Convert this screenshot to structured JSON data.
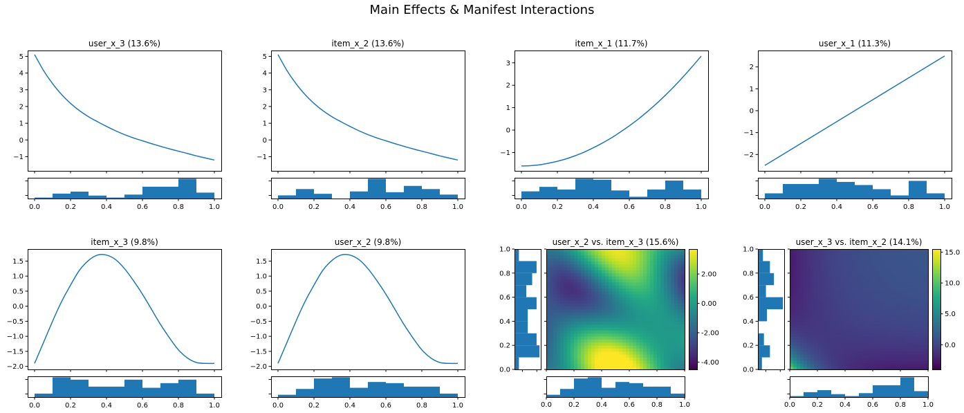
{
  "figure": {
    "title": "Main Effects & Manifest Interactions",
    "colors": {
      "line": "#1f77b4",
      "bar": "#1f77b4",
      "axis": "#000000"
    }
  },
  "chart_data": [
    {
      "type": "line",
      "title": "user_x_3 (13.6%)",
      "xlim": [
        0,
        1
      ],
      "ylim": [
        -1.85,
        5.35
      ],
      "yticks": [
        -1,
        0,
        1,
        2,
        3,
        4,
        5
      ],
      "ytick_labels": [
        "−1",
        "0",
        "1",
        "2",
        "3",
        "4",
        "5"
      ],
      "x": [
        0,
        0.05,
        0.1,
        0.15,
        0.2,
        0.25,
        0.3,
        0.35,
        0.4,
        0.45,
        0.5,
        0.55,
        0.6,
        0.65,
        0.7,
        0.75,
        0.8,
        0.85,
        0.9,
        0.95,
        1
      ],
      "y": [
        5.1,
        4.15,
        3.37,
        2.72,
        2.19,
        1.75,
        1.39,
        1.09,
        0.81,
        0.55,
        0.32,
        0.12,
        -0.05,
        -0.22,
        -0.38,
        -0.53,
        -0.67,
        -0.81,
        -0.95,
        -1.08,
        -1.2
      ],
      "histogram": {
        "bins": [
          0,
          0.1,
          0.2,
          0.3,
          0.4,
          0.5,
          0.6,
          0.7,
          0.8,
          0.9,
          1
        ],
        "counts": [
          1,
          5,
          7,
          3,
          1,
          4,
          12,
          12,
          20,
          6
        ],
        "xticks": [
          0,
          0.2,
          0.4,
          0.6,
          0.8,
          1.0
        ],
        "xtick_labels": [
          "0.0",
          "0.2",
          "0.4",
          "0.6",
          "0.8",
          "1.0"
        ]
      }
    },
    {
      "type": "line",
      "title": "item_x_2 (13.6%)",
      "xlim": [
        0,
        1
      ],
      "ylim": [
        -1.85,
        5.35
      ],
      "yticks": [
        -1,
        0,
        1,
        2,
        3,
        4,
        5
      ],
      "ytick_labels": [
        "−1",
        "0",
        "1",
        "2",
        "3",
        "4",
        "5"
      ],
      "x": [
        0,
        0.05,
        0.1,
        0.15,
        0.2,
        0.25,
        0.3,
        0.35,
        0.4,
        0.45,
        0.5,
        0.55,
        0.6,
        0.65,
        0.7,
        0.75,
        0.8,
        0.85,
        0.9,
        0.95,
        1
      ],
      "y": [
        5.1,
        4.15,
        3.37,
        2.72,
        2.19,
        1.75,
        1.39,
        1.09,
        0.81,
        0.55,
        0.32,
        0.12,
        -0.05,
        -0.22,
        -0.38,
        -0.53,
        -0.67,
        -0.81,
        -0.95,
        -1.08,
        -1.2
      ],
      "histogram": {
        "bins": [
          0,
          0.1,
          0.2,
          0.3,
          0.4,
          0.5,
          0.6,
          0.7,
          0.8,
          0.9,
          1
        ],
        "counts": [
          4,
          12,
          6,
          0,
          9,
          25,
          8,
          16,
          12,
          5
        ],
        "xticks": [
          0,
          0.2,
          0.4,
          0.6,
          0.8,
          1.0
        ],
        "xtick_labels": [
          "0.0",
          "0.2",
          "0.4",
          "0.6",
          "0.8",
          "1.0"
        ]
      }
    },
    {
      "type": "line",
      "title": "item_x_1 (11.7%)",
      "xlim": [
        0,
        1
      ],
      "ylim": [
        -1.82,
        3.55
      ],
      "yticks": [
        -1,
        0,
        1,
        2,
        3
      ],
      "ytick_labels": [
        "−1",
        "0",
        "1",
        "2",
        "3"
      ],
      "x": [
        0,
        0.05,
        0.1,
        0.15,
        0.2,
        0.25,
        0.3,
        0.35,
        0.4,
        0.45,
        0.5,
        0.55,
        0.6,
        0.65,
        0.7,
        0.75,
        0.8,
        0.85,
        0.9,
        0.95,
        1
      ],
      "y": [
        -1.6,
        -1.59,
        -1.55,
        -1.48,
        -1.39,
        -1.28,
        -1.14,
        -0.98,
        -0.79,
        -0.58,
        -0.35,
        -0.09,
        0.19,
        0.49,
        0.82,
        1.17,
        1.55,
        1.95,
        2.38,
        2.83,
        3.3
      ],
      "histogram": {
        "bins": [
          0,
          0.1,
          0.2,
          0.3,
          0.4,
          0.5,
          0.6,
          0.7,
          0.8,
          0.9,
          1
        ],
        "counts": [
          8,
          13,
          10,
          22,
          21,
          9,
          2,
          10,
          20,
          10
        ],
        "xticks": [
          0,
          0.2,
          0.4,
          0.6,
          0.8,
          1.0
        ],
        "xtick_labels": [
          "0.0",
          "0.2",
          "0.4",
          "0.6",
          "0.8",
          "1.0"
        ]
      }
    },
    {
      "type": "line",
      "title": "user_x_1 (11.3%)",
      "xlim": [
        0,
        1
      ],
      "ylim": [
        -2.75,
        2.75
      ],
      "yticks": [
        -2,
        -1,
        0,
        1,
        2
      ],
      "ytick_labels": [
        "−2",
        "−1",
        "0",
        "1",
        "2"
      ],
      "x": [
        0,
        1
      ],
      "y": [
        -2.5,
        2.5
      ],
      "histogram": {
        "bins": [
          0,
          0.1,
          0.2,
          0.3,
          0.4,
          0.5,
          0.6,
          0.7,
          0.8,
          0.9,
          1
        ],
        "counts": [
          5,
          14,
          14,
          19,
          16,
          13,
          9,
          3,
          17,
          5
        ],
        "xticks": [
          0,
          0.2,
          0.4,
          0.6,
          0.8,
          1.0
        ],
        "xtick_labels": [
          "0.0",
          "0.2",
          "0.4",
          "0.6",
          "0.8",
          "1.0"
        ]
      }
    },
    {
      "type": "line",
      "title": "item_x_3 (9.8%)",
      "xlim": [
        0,
        1
      ],
      "ylim": [
        -2.1,
        1.9
      ],
      "yticks": [
        -2.0,
        -1.5,
        -1.0,
        -0.5,
        0.0,
        0.5,
        1.0,
        1.5
      ],
      "ytick_labels": [
        "−2.0",
        "−1.5",
        "−1.0",
        "−0.5",
        "0.0",
        "0.5",
        "1.0",
        "1.5"
      ],
      "x": [
        0,
        0.05,
        0.1,
        0.15,
        0.2,
        0.25,
        0.3,
        0.35,
        0.4,
        0.45,
        0.5,
        0.55,
        0.6,
        0.65,
        0.7,
        0.75,
        0.8,
        0.85,
        0.9,
        0.95,
        1
      ],
      "y": [
        -1.9,
        -1.2,
        -0.5,
        0.15,
        0.7,
        1.2,
        1.52,
        1.7,
        1.7,
        1.55,
        1.25,
        0.85,
        0.4,
        -0.1,
        -0.6,
        -1.05,
        -1.45,
        -1.72,
        -1.87,
        -1.9,
        -1.9
      ],
      "histogram": {
        "bins": [
          0,
          0.1,
          0.2,
          0.3,
          0.4,
          0.5,
          0.6,
          0.7,
          0.8,
          0.9,
          1
        ],
        "counts": [
          3,
          17,
          15,
          9,
          9,
          15,
          8,
          12,
          15,
          3
        ],
        "xticks": [
          0,
          0.2,
          0.4,
          0.6,
          0.8,
          1.0
        ],
        "xtick_labels": [
          "0.0",
          "0.2",
          "0.4",
          "0.6",
          "0.8",
          "1.0"
        ]
      }
    },
    {
      "type": "line",
      "title": "user_x_2 (9.8%)",
      "xlim": [
        0,
        1
      ],
      "ylim": [
        -2.1,
        1.9
      ],
      "yticks": [
        -2.0,
        -1.5,
        -1.0,
        -0.5,
        0.0,
        0.5,
        1.0,
        1.5
      ],
      "ytick_labels": [
        "−2.0",
        "−1.5",
        "−1.0",
        "−0.5",
        "0.0",
        "0.5",
        "1.0",
        "1.5"
      ],
      "x": [
        0,
        0.05,
        0.1,
        0.15,
        0.2,
        0.25,
        0.3,
        0.35,
        0.4,
        0.45,
        0.5,
        0.55,
        0.6,
        0.65,
        0.7,
        0.75,
        0.8,
        0.85,
        0.9,
        0.95,
        1
      ],
      "y": [
        -1.9,
        -1.2,
        -0.5,
        0.15,
        0.7,
        1.2,
        1.52,
        1.7,
        1.7,
        1.55,
        1.25,
        0.85,
        0.4,
        -0.1,
        -0.6,
        -1.05,
        -1.45,
        -1.72,
        -1.87,
        -1.9,
        -1.9
      ],
      "histogram": {
        "bins": [
          0,
          0.1,
          0.2,
          0.3,
          0.4,
          0.5,
          0.6,
          0.7,
          0.8,
          0.9,
          1
        ],
        "counts": [
          2,
          7,
          16,
          17,
          8,
          13,
          12,
          9,
          9,
          3
        ],
        "xticks": [
          0,
          0.2,
          0.4,
          0.6,
          0.8,
          1.0
        ],
        "xtick_labels": [
          "0.0",
          "0.2",
          "0.4",
          "0.6",
          "0.8",
          "1.0"
        ]
      }
    },
    {
      "type": "heatmap",
      "title": "user_x_2 vs. item_x_3 (15.6%)",
      "xlim": [
        0,
        1
      ],
      "ylim": [
        0,
        1
      ],
      "colormap": "viridis",
      "zlim": [
        -4.5,
        3.7
      ],
      "colorbar_ticks": [
        2.0,
        0.0,
        -2.0,
        -4.0
      ],
      "colorbar_tick_labels": [
        "2.00",
        "0.00",
        "-2.00",
        "-4.00"
      ],
      "yticks": [
        0,
        0.2,
        0.4,
        0.6,
        0.8,
        1.0
      ],
      "ytick_labels": [
        "0.0",
        "0.2",
        "0.4",
        "0.6",
        "0.8",
        "1.0"
      ],
      "x_histogram": {
        "bins": [
          0,
          0.1,
          0.2,
          0.3,
          0.4,
          0.5,
          0.6,
          0.7,
          0.8,
          0.9,
          1
        ],
        "counts": [
          2,
          7,
          16,
          17,
          8,
          13,
          12,
          9,
          9,
          3
        ],
        "xticks": [
          0,
          0.2,
          0.4,
          0.6,
          0.8,
          1.0
        ],
        "xtick_labels": [
          "0.0",
          "0.2",
          "0.4",
          "0.6",
          "0.8",
          "1.0"
        ]
      },
      "y_histogram": {
        "bins": [
          0,
          0.1,
          0.2,
          0.3,
          0.4,
          0.5,
          0.6,
          0.7,
          0.8,
          0.9,
          1
        ],
        "counts": [
          3,
          17,
          15,
          9,
          9,
          15,
          8,
          12,
          15,
          3
        ]
      }
    },
    {
      "type": "heatmap",
      "title": "user_x_3 vs. item_x_2 (14.1%)",
      "xlim": [
        0,
        1
      ],
      "ylim": [
        0,
        1
      ],
      "colormap": "viridis",
      "zlim": [
        -4.0,
        15.5
      ],
      "colorbar_ticks": [
        15.0,
        10.0,
        5.0,
        0.0
      ],
      "colorbar_tick_labels": [
        "15.0",
        "10.0",
        "5.0",
        "0.0"
      ],
      "yticks": [
        0,
        0.2,
        0.4,
        0.6,
        0.8,
        1.0
      ],
      "ytick_labels": [
        "0.0",
        "0.2",
        "0.4",
        "0.6",
        "0.8",
        "1.0"
      ],
      "x_histogram": {
        "bins": [
          0,
          0.1,
          0.2,
          0.3,
          0.4,
          0.5,
          0.6,
          0.7,
          0.8,
          0.9,
          1
        ],
        "counts": [
          1,
          5,
          7,
          3,
          1,
          4,
          12,
          12,
          20,
          6
        ],
        "xticks": [
          0,
          0.2,
          0.4,
          0.6,
          0.8,
          1.0
        ],
        "xtick_labels": [
          "0.0",
          "0.2",
          "0.4",
          "0.6",
          "0.8",
          "1.0"
        ]
      },
      "y_histogram": {
        "bins": [
          0,
          0.1,
          0.2,
          0.3,
          0.4,
          0.5,
          0.6,
          0.7,
          0.8,
          0.9,
          1
        ],
        "counts": [
          4,
          12,
          6,
          0,
          9,
          25,
          8,
          16,
          12,
          5
        ]
      }
    }
  ]
}
